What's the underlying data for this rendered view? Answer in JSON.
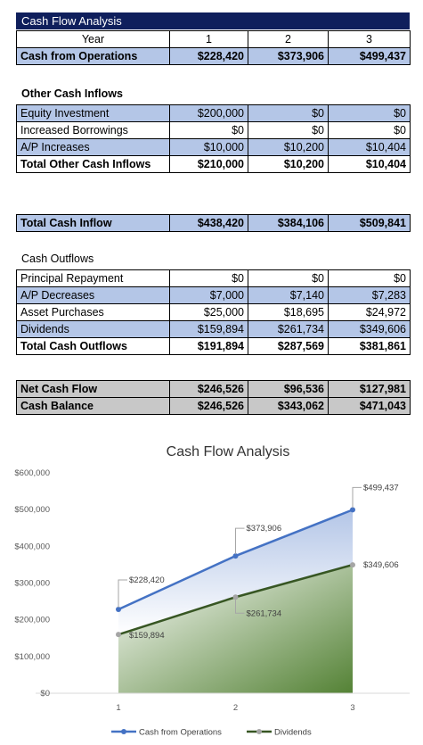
{
  "sheet_title": "Cash Flow Analysis",
  "header": {
    "label": "Year",
    "years": [
      "1",
      "2",
      "3"
    ]
  },
  "operations": {
    "label": "Cash from Operations",
    "values": [
      "$228,420",
      "$373,906",
      "$499,437"
    ]
  },
  "other_inflows": {
    "heading": "Other Cash Inflows",
    "rows": [
      {
        "label": "Equity Investment",
        "values": [
          "$200,000",
          "$0",
          "$0"
        ]
      },
      {
        "label": "Increased Borrowings",
        "values": [
          "$0",
          "$0",
          "$0"
        ]
      },
      {
        "label": "A/P Increases",
        "values": [
          "$10,000",
          "$10,200",
          "$10,404"
        ]
      }
    ],
    "total": {
      "label": "Total Other Cash Inflows",
      "values": [
        "$210,000",
        "$10,200",
        "$10,404"
      ]
    }
  },
  "total_inflow": {
    "label": "Total Cash Inflow",
    "values": [
      "$438,420",
      "$384,106",
      "$509,841"
    ]
  },
  "outflows": {
    "heading": "Cash Outflows",
    "rows": [
      {
        "label": "Principal Repayment",
        "values": [
          "$0",
          "$0",
          "$0"
        ]
      },
      {
        "label": "A/P Decreases",
        "values": [
          "$7,000",
          "$7,140",
          "$7,283"
        ]
      },
      {
        "label": "Asset Purchases",
        "values": [
          "$25,000",
          "$18,695",
          "$24,972"
        ]
      },
      {
        "label": "Dividends",
        "values": [
          "$159,894",
          "$261,734",
          "$349,606"
        ]
      }
    ],
    "total": {
      "label": "Total Cash Outflows",
      "values": [
        "$191,894",
        "$287,569",
        "$381,861"
      ]
    }
  },
  "net": {
    "rows": [
      {
        "label": "Net Cash Flow",
        "values": [
          "$246,526",
          "$96,536",
          "$127,981"
        ]
      },
      {
        "label": "Cash Balance",
        "values": [
          "$246,526",
          "$343,062",
          "$471,043"
        ]
      }
    ]
  },
  "colors": {
    "title_bg": "#0f1f5c",
    "row_blue": "#b4c6e7",
    "row_gray": "#c8c8c8",
    "operations_line": "#4472c4",
    "dividends_line": "#375623",
    "point_gray": "#a5a5a5"
  },
  "chart_data": {
    "type": "area",
    "title": "Cash Flow Analysis",
    "x": [
      1,
      2,
      3
    ],
    "ylim": [
      0,
      600000
    ],
    "yticks": [
      0,
      100000,
      200000,
      300000,
      400000,
      500000,
      600000
    ],
    "ytick_labels": [
      "$0",
      "$100,000",
      "$200,000",
      "$300,000",
      "$400,000",
      "$500,000",
      "$600,000"
    ],
    "xtick_labels": [
      "1",
      "2",
      "3"
    ],
    "grid": false,
    "legend": "bottom",
    "series": [
      {
        "name": "Cash from Operations",
        "values": [
          228420,
          373906,
          499437
        ],
        "labels": [
          "$228,420",
          "$373,906",
          "$499,437"
        ]
      },
      {
        "name": "Dividends",
        "values": [
          159894,
          261734,
          349606
        ],
        "labels": [
          "$159,894",
          "$261,734",
          "$349,606"
        ]
      }
    ]
  }
}
